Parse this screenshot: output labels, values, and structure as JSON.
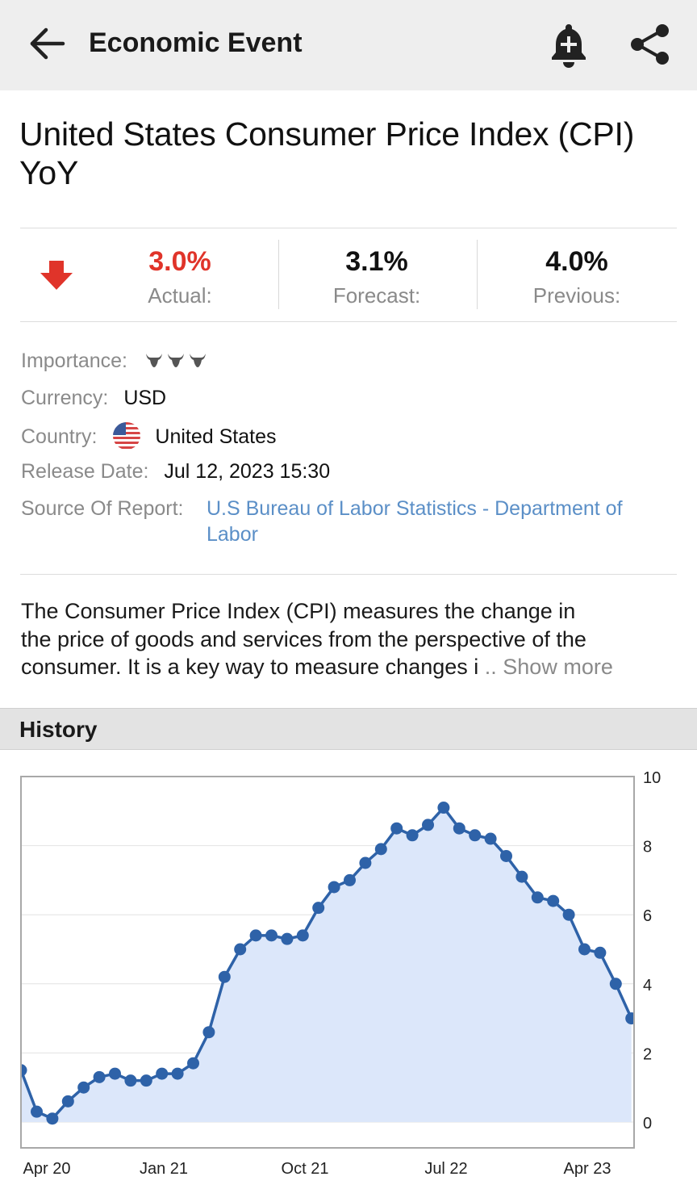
{
  "appbar": {
    "title": "Economic Event",
    "back_icon": "arrow-left-icon",
    "alert_icon": "bell-plus-icon",
    "share_icon": "share-icon"
  },
  "event": {
    "title": "United States Consumer Price Index (CPI) YoY"
  },
  "stats": {
    "direction_icon": "arrow-down-icon",
    "actual_value": "3.0%",
    "actual_label": "Actual:",
    "actual_color": "#e0342a",
    "forecast_value": "3.1%",
    "forecast_label": "Forecast:",
    "previous_value": "4.0%",
    "previous_label": "Previous:"
  },
  "details": {
    "importance_label": "Importance:",
    "importance_level": 3,
    "importance_icon": "bull-icon",
    "currency_label": "Currency:",
    "currency_value": "USD",
    "country_label": "Country:",
    "country_value": "United States",
    "country_flag_icon": "us-flag-icon",
    "release_label": "Release Date:",
    "release_value": "Jul 12, 2023 15:30",
    "source_label": "Source Of Report:",
    "source_value_line1": "U.S Bureau of Labor Statistics - Department of",
    "source_value_line2": "Labor",
    "link_color": "#5b8fc7"
  },
  "description": {
    "line1": "The Consumer Price Index (CPI) measures the change in",
    "line2": "the price of goods and services from the perspective of the",
    "line3": "consumer. It is a key way to measure changes i",
    "ellipsis": " .. ",
    "show_more": "Show more"
  },
  "history": {
    "title": "History"
  },
  "chart_data": {
    "type": "area",
    "title": "",
    "xlabel": "",
    "ylabel": "",
    "x_tick_labels": [
      "Apr 20",
      "Jan 21",
      "Oct 21",
      "Jul 22",
      "Apr 23"
    ],
    "y_tick_labels": [
      "0",
      "2",
      "4",
      "6",
      "8",
      "10"
    ],
    "ylim": [
      0,
      10
    ],
    "grid": true,
    "line_color": "#2e62a8",
    "fill_color": "#dce7fa",
    "x": [
      "2020-04",
      "2020-05",
      "2020-06",
      "2020-07",
      "2020-08",
      "2020-09",
      "2020-10",
      "2020-11",
      "2020-12",
      "2021-01",
      "2021-02",
      "2021-03",
      "2021-04",
      "2021-05",
      "2021-06",
      "2021-07",
      "2021-08",
      "2021-09",
      "2021-10",
      "2021-11",
      "2021-12",
      "2022-01",
      "2022-02",
      "2022-03",
      "2022-04",
      "2022-05",
      "2022-06",
      "2022-07",
      "2022-08",
      "2022-09",
      "2022-10",
      "2022-11",
      "2022-12",
      "2023-01",
      "2023-02",
      "2023-03",
      "2023-04",
      "2023-05",
      "2023-06"
    ],
    "series": [
      {
        "values": [
          0.3,
          0.1,
          0.6,
          1.0,
          1.3,
          1.4,
          1.2,
          1.2,
          1.4,
          1.4,
          1.7,
          2.6,
          4.2,
          5.0,
          5.4,
          5.4,
          5.3,
          5.4,
          6.2,
          6.8,
          7.0,
          7.5,
          7.9,
          8.5,
          8.3,
          8.6,
          9.1,
          8.5,
          8.3,
          8.2,
          7.7,
          7.1,
          6.5,
          6.4,
          6.0,
          5.0,
          4.9,
          4.0,
          3.0
        ]
      }
    ],
    "partial_point_before_first": 1.5
  }
}
